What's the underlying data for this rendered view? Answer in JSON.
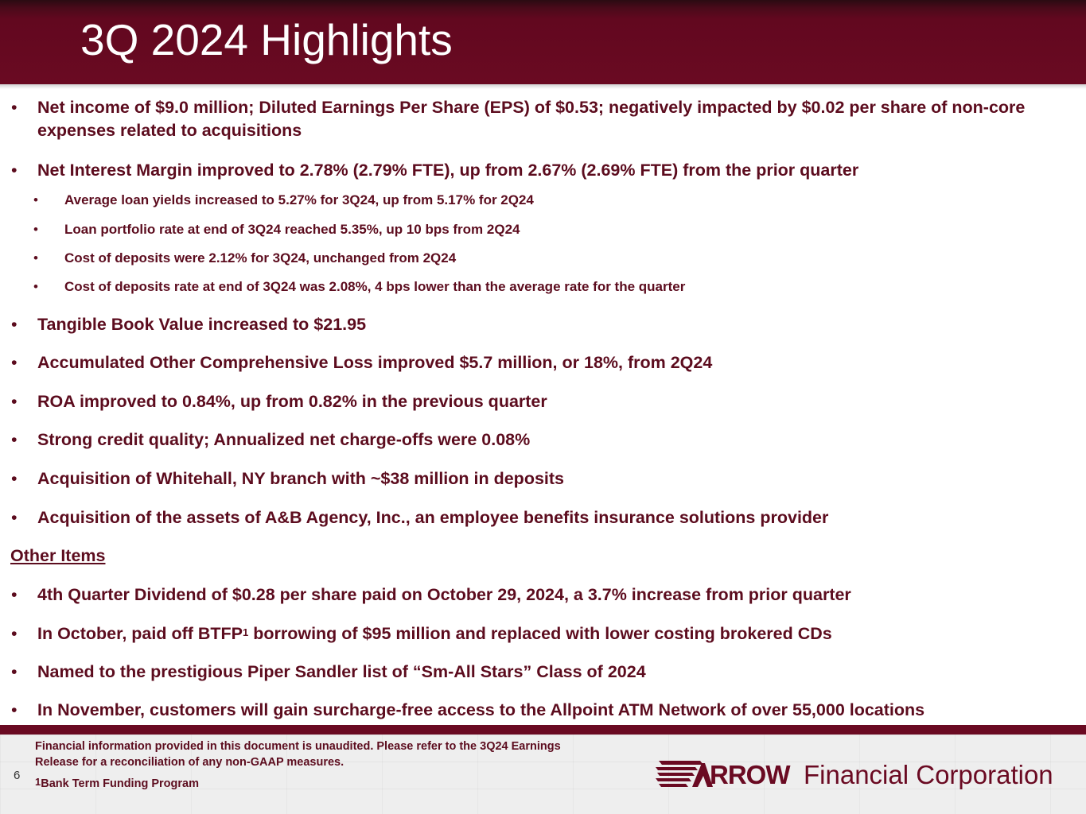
{
  "slide": {
    "title": "3Q 2024 Highlights",
    "page_number": "6"
  },
  "bullet_glyph": "•",
  "highlights": [
    "Net income of $9.0 million; Diluted Earnings Per Share (EPS) of $0.53; negatively impacted by $0.02 per share of non-core expenses related to acquisitions",
    "Net Interest Margin improved to 2.78% (2.79% FTE), up from 2.67% (2.69% FTE) from the prior quarter"
  ],
  "nim_subpoints": [
    "Average loan yields increased to 5.27% for 3Q24, up from 5.17% for 2Q24",
    "Loan portfolio rate at end of 3Q24 reached 5.35%, up 10 bps from 2Q24",
    "Cost of deposits were 2.12% for 3Q24, unchanged from 2Q24",
    "Cost of deposits rate at end of 3Q24 was 2.08%, 4 bps lower than the average rate for the quarter"
  ],
  "more_highlights": [
    "Tangible Book Value increased to $21.95",
    "Accumulated Other Comprehensive Loss improved $5.7 million, or 18%, from 2Q24",
    "ROA improved to 0.84%, up from 0.82% in the previous quarter",
    "Strong credit quality; Annualized net charge-offs were 0.08%",
    "Acquisition of Whitehall, NY branch with ~$38 million in deposits",
    "Acquisition of the assets of A&B Agency, Inc., an employee benefits insurance solutions provider"
  ],
  "other_items": {
    "heading": "Other Items",
    "items": [
      "4th Quarter Dividend of $0.28 per share paid on October 29, 2024, a 3.7% increase from prior quarter",
      {
        "before": "In October, paid off BTFP",
        "sup": "1",
        "after": " borrowing of $95 million and replaced with lower costing brokered CDs"
      },
      "Named to the prestigious Piper Sandler list of “Sm-All Stars” Class of 2024",
      "In November, customers will gain surcharge-free access to the Allpoint ATM Network of over 55,000 locations"
    ]
  },
  "footer": {
    "disclaimer_line1": "Financial information provided in this document is unaudited. Please refer to the 3Q24 Earnings",
    "disclaimer_line2": "Release for a reconciliation of any non-GAAP measures.",
    "footnote_sup": "1",
    "footnote_text": "Bank Term Funding Program"
  },
  "logo": {
    "icon": "arrow-logo-icon",
    "wordmark": "RROW",
    "name": "Financial Corporation"
  },
  "colors": {
    "brand_maroon": "#6a0a22",
    "text_maroon": "#5c0c1e",
    "title_text": "#ffffff"
  }
}
